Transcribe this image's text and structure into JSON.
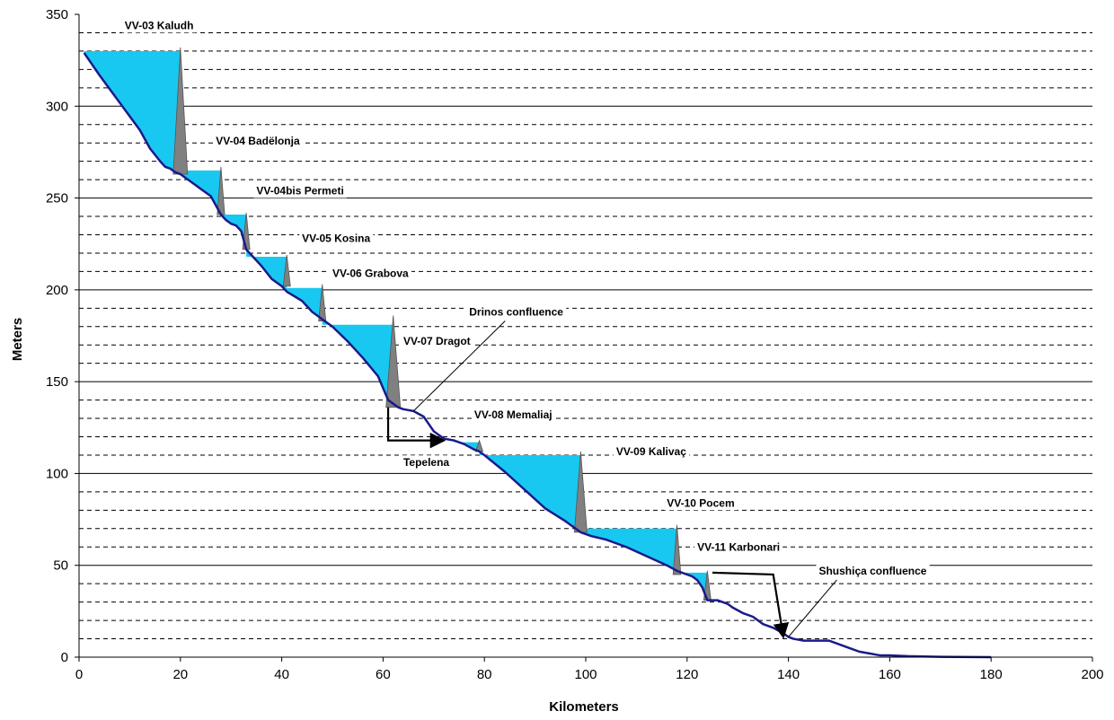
{
  "chart_data": {
    "type": "area",
    "title": "",
    "xlabel": "Kilometers",
    "ylabel": "Meters",
    "xlim": [
      0,
      200
    ],
    "ylim": [
      0,
      350
    ],
    "x_ticks": [
      "0",
      "20",
      "40",
      "60",
      "80",
      "100",
      "120",
      "140",
      "160",
      "180",
      "200"
    ],
    "y_ticks": [
      "0",
      "50",
      "100",
      "150",
      "200",
      "250",
      "300",
      "350"
    ],
    "grid": {
      "major_solid_every": 50,
      "minor_dashed_every": 10
    },
    "colors": {
      "riverbed": "#1a1a8c",
      "reservoir": "#19c8f0",
      "dam": "#808080",
      "grid": "#000000"
    },
    "riverbed": {
      "x": [
        1,
        4,
        8,
        12,
        14,
        16,
        17,
        18,
        19,
        20,
        22,
        24,
        26,
        27,
        28,
        29,
        30,
        31,
        32,
        33,
        34,
        36,
        38,
        40,
        41,
        44,
        46,
        48,
        50,
        53,
        56,
        59,
        61,
        62,
        63,
        64,
        66,
        68,
        69,
        70,
        71,
        72,
        74,
        76,
        78,
        79,
        80,
        84,
        88,
        92,
        96,
        98,
        99,
        101,
        104,
        108,
        112,
        116,
        118,
        120,
        121,
        122,
        123,
        124,
        126,
        128,
        129,
        131,
        133,
        135,
        137,
        139,
        140,
        141,
        143,
        145,
        147,
        148,
        150,
        152,
        154,
        156,
        158,
        160,
        164,
        170,
        180
      ],
      "y": [
        329,
        317,
        302,
        287,
        277,
        270,
        267,
        266,
        264,
        263,
        259,
        255,
        251,
        246,
        241,
        238,
        236,
        235,
        232,
        222,
        219,
        213,
        206,
        202,
        199,
        194,
        188,
        184,
        180,
        172,
        163,
        153,
        140,
        138,
        136,
        135,
        134,
        131,
        127,
        123,
        121,
        119,
        118,
        116,
        113,
        112,
        110,
        101,
        91,
        81,
        74,
        70,
        68,
        66,
        64,
        60,
        55,
        50,
        47,
        45,
        44,
        42,
        38,
        31,
        31,
        29,
        27,
        24,
        22,
        18,
        16,
        13,
        11,
        10,
        9,
        9,
        9,
        9,
        7,
        5,
        3,
        2,
        1,
        1,
        0.5,
        0.2,
        0
      ]
    },
    "reservoirs": [
      {
        "from_km": 1,
        "to_km": 20,
        "level": 330
      },
      {
        "from_km": 20,
        "to_km": 28,
        "level": 265
      },
      {
        "from_km": 28,
        "to_km": 33,
        "level": 241
      },
      {
        "from_km": 33,
        "to_km": 41,
        "level": 218
      },
      {
        "from_km": 41,
        "to_km": 48,
        "level": 201
      },
      {
        "from_km": 48,
        "to_km": 62,
        "level": 181
      },
      {
        "from_km": 74,
        "to_km": 79,
        "level": 117
      },
      {
        "from_km": 79,
        "to_km": 99,
        "level": 110
      },
      {
        "from_km": 99,
        "to_km": 118,
        "level": 70
      },
      {
        "from_km": 118,
        "to_km": 124,
        "level": 46
      }
    ],
    "dams": [
      {
        "km": 20,
        "bed": 263,
        "crest": 332,
        "label": "VV-03 Kaludh",
        "label_km": 9,
        "label_m": 342
      },
      {
        "km": 28,
        "bed": 241,
        "crest": 267,
        "label": "VV-04 Badëlonja",
        "label_km": 27,
        "label_m": 279
      },
      {
        "km": 33,
        "bed": 222,
        "crest": 242,
        "label": "VV-04bis Permeti",
        "label_km": 35,
        "label_m": 252
      },
      {
        "km": 41,
        "bed": 202,
        "crest": 219,
        "label": "VV-05 Kosina",
        "label_km": 44,
        "label_m": 226
      },
      {
        "km": 48,
        "bed": 183,
        "crest": 203,
        "label": "VV-06 Grabova",
        "label_km": 50,
        "label_m": 207
      },
      {
        "km": 62,
        "bed": 136,
        "crest": 186,
        "label": "VV-07 Dragot",
        "label_km": 64,
        "label_m": 170
      },
      {
        "km": 79,
        "bed": 112,
        "crest": 118,
        "label": "VV-08 Memaliaj",
        "label_km": 78,
        "label_m": 130
      },
      {
        "km": 99,
        "bed": 68,
        "crest": 112,
        "label": "VV-09 Kalivaç",
        "label_km": 106,
        "label_m": 110
      },
      {
        "km": 118,
        "bed": 45,
        "crest": 72,
        "label": "VV-10 Pocem",
        "label_km": 116,
        "label_m": 82
      },
      {
        "km": 124,
        "bed": 31,
        "crest": 47,
        "label": "VV-11 Karbonari",
        "label_km": 122,
        "label_m": 58
      }
    ],
    "diversions": [
      {
        "points": [
          [
            61,
            136
          ],
          [
            61,
            118
          ],
          [
            72,
            118
          ]
        ]
      },
      {
        "points": [
          [
            125,
            46
          ],
          [
            137,
            45
          ],
          [
            139,
            11
          ]
        ]
      }
    ],
    "annotations": [
      {
        "text": "Drinos confluence",
        "label_km": 77,
        "label_m": 186,
        "point_km": 66,
        "point_m": 134
      },
      {
        "text": "Tepelena",
        "label_km": 64,
        "label_m": 104
      },
      {
        "text": "Shushiça confluence",
        "label_km": 146,
        "label_m": 45,
        "point_km": 140,
        "point_m": 11
      }
    ]
  }
}
